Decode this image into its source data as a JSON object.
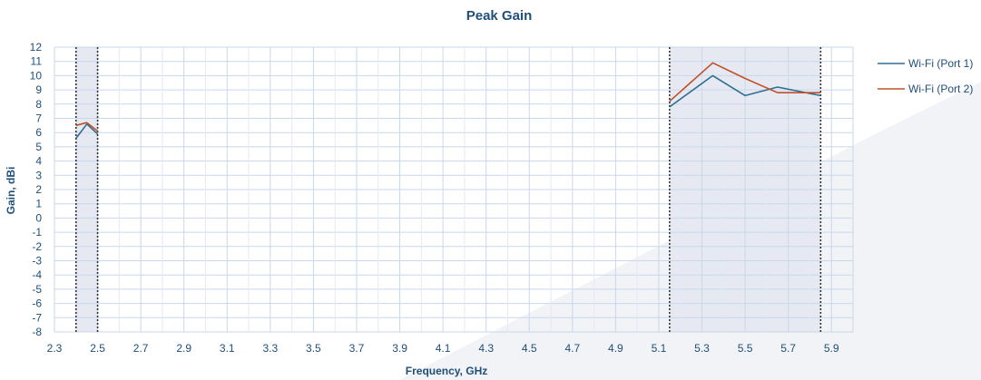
{
  "chart_data": {
    "type": "line",
    "title": "Peak Gain",
    "xlabel": "Frequency, GHz",
    "ylabel": "Gain, dBi",
    "xlim": [
      2.3,
      6.0
    ],
    "ylim": [
      -8,
      12
    ],
    "xticks": [
      "2.3",
      "2.5",
      "2.7",
      "2.9",
      "3.1",
      "3.3",
      "3.5",
      "3.7",
      "3.9",
      "4.1",
      "4.3",
      "4.5",
      "4.7",
      "4.9",
      "5.1",
      "5.3",
      "5.5",
      "5.7",
      "5.9"
    ],
    "yticks": [
      "12",
      "11",
      "10",
      "9",
      "8",
      "7",
      "6",
      "5",
      "4",
      "3",
      "2",
      "1",
      "0",
      "-1",
      "-2",
      "-3",
      "-4",
      "-5",
      "-6",
      "-7",
      "-8"
    ],
    "grid": true,
    "legend_position": "right",
    "shaded_bands": [
      {
        "from": 2.4,
        "to": 2.5
      },
      {
        "from": 5.15,
        "to": 5.85
      }
    ],
    "series": [
      {
        "name": "Wi-Fi (Port 1)",
        "color": "#2f6f8f",
        "segments": [
          {
            "x": [
              2.4,
              2.45,
              2.5
            ],
            "y": [
              5.6,
              6.6,
              5.9
            ]
          },
          {
            "x": [
              5.15,
              5.35,
              5.5,
              5.65,
              5.85
            ],
            "y": [
              7.8,
              10.0,
              8.6,
              9.2,
              8.6
            ]
          }
        ]
      },
      {
        "name": "Wi-Fi (Port 2)",
        "color": "#c0502a",
        "segments": [
          {
            "x": [
              2.4,
              2.45,
              2.5
            ],
            "y": [
              6.5,
              6.7,
              6.1
            ]
          },
          {
            "x": [
              5.15,
              5.35,
              5.5,
              5.65,
              5.85
            ],
            "y": [
              8.2,
              10.9,
              9.8,
              8.8,
              8.8
            ]
          }
        ]
      }
    ]
  }
}
